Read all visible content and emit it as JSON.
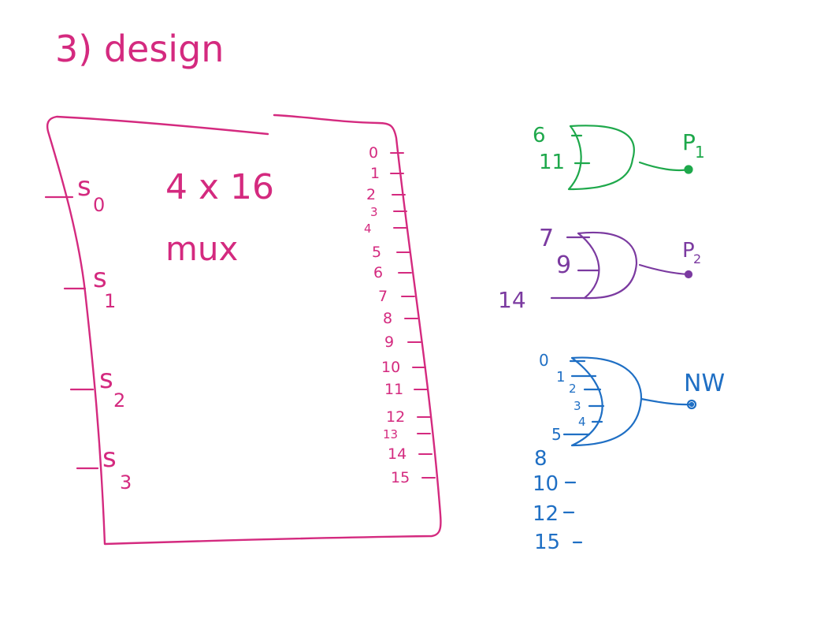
{
  "colors": {
    "magenta": "#d42a7f",
    "green": "#1ea84b",
    "purple": "#7b3aa0",
    "blue": "#1f6fc4"
  },
  "title": "3) design",
  "mux": {
    "label_line1": "4 x 16",
    "label_line2": "mux",
    "selects": [
      {
        "base": "s",
        "sub": "0"
      },
      {
        "base": "s",
        "sub": "1"
      },
      {
        "base": "s",
        "sub": "2"
      },
      {
        "base": "s",
        "sub": "3"
      }
    ],
    "outputs": [
      "0",
      "1",
      "2",
      "3",
      "4",
      "5",
      "6",
      "7",
      "8",
      "9",
      "10",
      "11",
      "12",
      "13",
      "14",
      "15"
    ]
  },
  "gates": [
    {
      "id": "gate-p1",
      "color_key": "green",
      "inputs": [
        "6",
        "11"
      ],
      "output_base": "P",
      "output_sub": "1"
    },
    {
      "id": "gate-p2",
      "color_key": "purple",
      "inputs": [
        "7",
        "9",
        "14"
      ],
      "output_base": "P",
      "output_sub": "2"
    },
    {
      "id": "gate-nw",
      "color_key": "blue",
      "inputs": [
        "0",
        "1",
        "2",
        "3",
        "4",
        "5",
        "8",
        "10",
        "12",
        "15"
      ],
      "output_base": "NW",
      "output_sub": ""
    }
  ]
}
